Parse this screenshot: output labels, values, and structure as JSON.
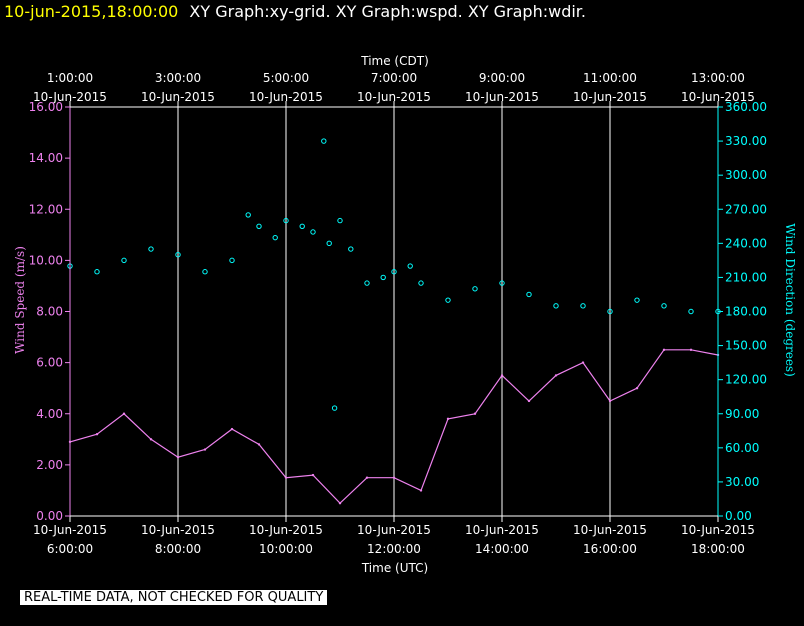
{
  "header": {
    "timestamp": "10-jun-2015,18:00:00",
    "title": "XY Graph:xy-grid.  XY Graph:wspd.  XY Graph:wdir."
  },
  "disclaimer": "REAL-TIME DATA, NOT CHECKED FOR QUALITY",
  "colors": {
    "wspd": "#ee82ee",
    "wdir": "#00ffff",
    "grid": "#ffffff",
    "background": "#000000"
  },
  "chart_data": {
    "type": "line",
    "x_top_label": "Time (CDT)",
    "x_bottom_label": "Time (UTC)",
    "y_left_label": "Wind Speed (m/s)",
    "y_right_label": "Wind Direction (degrees)",
    "x_range_utc_hours": [
      6,
      18
    ],
    "y_left_range": [
      0,
      16
    ],
    "y_right_range": [
      0,
      360
    ],
    "grid": true,
    "bottom_ticks": [
      {
        "hour": 6,
        "date": "10-Jun-2015",
        "time": "6:00:00"
      },
      {
        "hour": 8,
        "date": "10-Jun-2015",
        "time": "8:00:00"
      },
      {
        "hour": 10,
        "date": "10-Jun-2015",
        "time": "10:00:00"
      },
      {
        "hour": 12,
        "date": "10-Jun-2015",
        "time": "12:00:00"
      },
      {
        "hour": 14,
        "date": "10-Jun-2015",
        "time": "14:00:00"
      },
      {
        "hour": 16,
        "date": "10-Jun-2015",
        "time": "16:00:00"
      },
      {
        "hour": 18,
        "date": "10-Jun-2015",
        "time": "18:00:00"
      }
    ],
    "top_ticks": [
      {
        "hour": 6,
        "date": "10-Jun-2015",
        "time": "1:00:00"
      },
      {
        "hour": 8,
        "date": "10-Jun-2015",
        "time": "3:00:00"
      },
      {
        "hour": 10,
        "date": "10-Jun-2015",
        "time": "5:00:00"
      },
      {
        "hour": 12,
        "date": "10-Jun-2015",
        "time": "7:00:00"
      },
      {
        "hour": 14,
        "date": "10-Jun-2015",
        "time": "9:00:00"
      },
      {
        "hour": 16,
        "date": "10-Jun-2015",
        "time": "11:00:00"
      },
      {
        "hour": 18,
        "date": "10-Jun-2015",
        "time": "13:00:00"
      }
    ],
    "y_left_ticks": [
      "0.00",
      "2.00",
      "4.00",
      "6.00",
      "8.00",
      "10.00",
      "12.00",
      "14.00",
      "16.00"
    ],
    "y_right_ticks": [
      "0.00",
      "30.00",
      "60.00",
      "90.00",
      "120.00",
      "150.00",
      "180.00",
      "210.00",
      "240.00",
      "270.00",
      "300.00",
      "330.00",
      "360.00"
    ],
    "series": [
      {
        "name": "wspd",
        "style": "line",
        "x": [
          6.0,
          6.5,
          7.0,
          7.5,
          8.0,
          8.5,
          9.0,
          9.5,
          10.0,
          10.5,
          11.0,
          11.5,
          12.0,
          12.5,
          13.0,
          13.5,
          14.0,
          14.5,
          15.0,
          15.5,
          16.0,
          16.5,
          17.0,
          17.5,
          18.0
        ],
        "values": [
          2.9,
          3.2,
          4.0,
          3.0,
          2.3,
          2.6,
          3.4,
          2.8,
          1.5,
          1.6,
          0.5,
          1.5,
          1.5,
          1.0,
          3.8,
          4.0,
          5.5,
          4.5,
          5.5,
          6.0,
          4.5,
          5.0,
          6.5,
          6.5,
          6.3
        ]
      },
      {
        "name": "wdir",
        "style": "scatter",
        "x": [
          6.0,
          6.5,
          7.0,
          7.5,
          8.0,
          8.5,
          9.0,
          9.3,
          9.5,
          9.8,
          10.0,
          10.3,
          10.5,
          10.7,
          10.8,
          10.9,
          11.0,
          11.2,
          11.5,
          11.8,
          12.0,
          12.3,
          12.5,
          13.0,
          13.5,
          14.0,
          14.5,
          15.0,
          15.5,
          16.0,
          16.5,
          17.0,
          17.5,
          18.0
        ],
        "values": [
          220,
          215,
          225,
          235,
          230,
          215,
          225,
          265,
          255,
          245,
          260,
          255,
          250,
          330,
          240,
          95,
          260,
          235,
          205,
          210,
          215,
          220,
          205,
          190,
          200,
          205,
          195,
          185,
          185,
          180,
          190,
          185,
          180,
          180
        ]
      }
    ]
  }
}
